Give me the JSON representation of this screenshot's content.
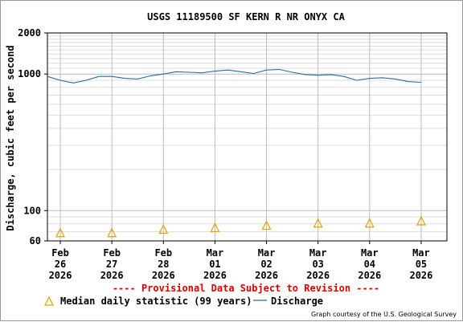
{
  "title": "USGS 11189500 SF KERN R NR ONYX CA",
  "ylabel": "Discharge, cubic feet per second",
  "provisional_note": "---- Provisional Data Subject to Revision ----",
  "legend": {
    "median_label": "Median daily statistic (99 years)",
    "discharge_label": "Discharge"
  },
  "credit": "Graph courtesy of the U.S. Geological Survey",
  "colors": {
    "discharge": "#1f6fa3",
    "median": "#e6a000",
    "grid_major": "#bbbbbb",
    "grid_minor": "#dddddd",
    "provisional": "#dd0000"
  },
  "chart_data": {
    "type": "line",
    "y_scale": "log",
    "ylim": [
      60,
      2000
    ],
    "y_ticks": [
      60,
      100,
      1000,
      2000
    ],
    "xlim": [
      "2026-02-25 18:00",
      "2026-03-05 12:00"
    ],
    "x_ticks": [
      {
        "date": "2026-02-26",
        "lines": [
          "Feb",
          "26",
          "2026"
        ]
      },
      {
        "date": "2026-02-27",
        "lines": [
          "Feb",
          "27",
          "2026"
        ]
      },
      {
        "date": "2026-02-28",
        "lines": [
          "Feb",
          "28",
          "2026"
        ]
      },
      {
        "date": "2026-03-01",
        "lines": [
          "Mar",
          "01",
          "2026"
        ]
      },
      {
        "date": "2026-03-02",
        "lines": [
          "Mar",
          "02",
          "2026"
        ]
      },
      {
        "date": "2026-03-03",
        "lines": [
          "Mar",
          "03",
          "2026"
        ]
      },
      {
        "date": "2026-03-04",
        "lines": [
          "Mar",
          "04",
          "2026"
        ]
      },
      {
        "date": "2026-03-05",
        "lines": [
          "Mar",
          "05",
          "2026"
        ]
      }
    ],
    "series": [
      {
        "name": "Discharge",
        "x": [
          "2026-02-25 18:00",
          "2026-02-26 00:00",
          "2026-02-26 06:00",
          "2026-02-26 12:00",
          "2026-02-26 18:00",
          "2026-02-27 00:00",
          "2026-02-27 06:00",
          "2026-02-27 12:00",
          "2026-02-27 18:00",
          "2026-02-28 00:00",
          "2026-02-28 06:00",
          "2026-02-28 12:00",
          "2026-02-28 18:00",
          "2026-03-01 00:00",
          "2026-03-01 06:00",
          "2026-03-01 12:00",
          "2026-03-01 18:00",
          "2026-03-02 00:00",
          "2026-03-02 06:00",
          "2026-03-02 12:00",
          "2026-03-02 18:00",
          "2026-03-03 00:00",
          "2026-03-03 06:00",
          "2026-03-03 12:00",
          "2026-03-03 18:00",
          "2026-03-04 00:00",
          "2026-03-04 06:00",
          "2026-03-04 12:00",
          "2026-03-04 18:00",
          "2026-03-05 00:00"
        ],
        "y": [
          960,
          900,
          860,
          900,
          960,
          960,
          930,
          920,
          970,
          1000,
          1040,
          1030,
          1020,
          1050,
          1070,
          1040,
          1010,
          1070,
          1080,
          1030,
          990,
          980,
          990,
          960,
          900,
          930,
          940,
          920,
          880,
          870
        ]
      },
      {
        "name": "Median daily statistic (99 years)",
        "x": [
          "2026-02-26",
          "2026-02-27",
          "2026-02-28",
          "2026-03-01",
          "2026-03-02",
          "2026-03-03",
          "2026-03-04",
          "2026-03-05"
        ],
        "y": [
          68,
          68,
          72,
          74,
          77,
          80,
          80,
          83
        ]
      }
    ]
  }
}
